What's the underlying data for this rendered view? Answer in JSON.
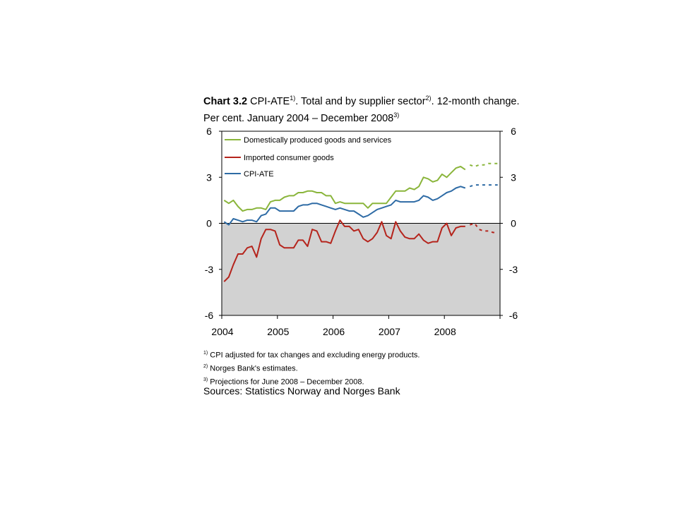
{
  "title": {
    "label": "Chart 3.2",
    "text1": "CPI-ATE",
    "sup1": "1)",
    "text2": ". Total and by supplier sector",
    "sup2": "2)",
    "text3": ". 12-month change. Per cent. January 2004 – December 2008",
    "sup3": "3)"
  },
  "footnotes": [
    {
      "marker": "1)",
      "text": "CPI adjusted for tax changes and excluding energy products."
    },
    {
      "marker": "2)",
      "text": "Norges Bank's estimates."
    },
    {
      "marker": "3)",
      "text": "Projections for June 2008 – December 2008."
    }
  ],
  "sources": "Sources: Statistics Norway and Norges Bank",
  "chart_data": {
    "type": "line",
    "x_start": "2004-01",
    "x_end": "2008-12",
    "x_ticks": [
      "2004",
      "2005",
      "2006",
      "2007",
      "2008"
    ],
    "ylim": [
      -6,
      6
    ],
    "y_ticks": [
      "6",
      "3",
      "0",
      "-3",
      "-6"
    ],
    "y2_ticks": [
      "6",
      "3",
      "0",
      "-3",
      "-6"
    ],
    "shade_below": 0,
    "legend_position": "top-left",
    "colors": {
      "domestic": "#8ab53b",
      "imported": "#b5241c",
      "cpiate": "#2e6ba5",
      "shade": "#d2d2d2"
    },
    "series": [
      {
        "key": "domestic",
        "name": "Domestically produced goods and services",
        "values": [
          1.5,
          1.3,
          1.5,
          1.1,
          0.8,
          0.9,
          0.9,
          1.0,
          1.0,
          0.9,
          1.4,
          1.5,
          1.5,
          1.7,
          1.8,
          1.8,
          2.0,
          2.0,
          2.1,
          2.1,
          2.0,
          2.0,
          1.8,
          1.8,
          1.3,
          1.4,
          1.3,
          1.3,
          1.3,
          1.3,
          1.3,
          1.0,
          1.3,
          1.3,
          1.3,
          1.3,
          1.7,
          2.1,
          2.1,
          2.1,
          2.3,
          2.2,
          2.4,
          3.0,
          2.9,
          2.7,
          2.8,
          3.2,
          3.0,
          3.3,
          3.6,
          3.7,
          3.5
        ],
        "projection": [
          3.8,
          3.7,
          3.8,
          3.8,
          3.9,
          3.9,
          3.9
        ]
      },
      {
        "key": "imported",
        "name": "Imported consumer goods",
        "values": [
          -3.8,
          -3.5,
          -2.7,
          -2.0,
          -2.0,
          -1.6,
          -1.5,
          -2.2,
          -1.0,
          -0.4,
          -0.4,
          -0.5,
          -1.4,
          -1.6,
          -1.6,
          -1.6,
          -1.1,
          -1.1,
          -1.5,
          -0.4,
          -0.5,
          -1.2,
          -1.2,
          -1.3,
          -0.5,
          0.2,
          -0.2,
          -0.2,
          -0.5,
          -0.4,
          -1.0,
          -1.2,
          -1.0,
          -0.6,
          0.1,
          -0.8,
          -1.0,
          0.1,
          -0.5,
          -0.9,
          -1.0,
          -1.0,
          -0.7,
          -1.1,
          -1.3,
          -1.2,
          -1.2,
          -0.3,
          0.0,
          -0.8,
          -0.3,
          -0.2,
          -0.2
        ],
        "projection": [
          -0.1,
          0.0,
          -0.4,
          -0.5,
          -0.5,
          -0.6,
          -0.6
        ]
      },
      {
        "key": "cpiate",
        "name": "CPI-ATE",
        "values": [
          0.1,
          -0.1,
          0.3,
          0.2,
          0.1,
          0.2,
          0.2,
          0.1,
          0.5,
          0.6,
          1.0,
          1.0,
          0.8,
          0.8,
          0.8,
          0.8,
          1.1,
          1.2,
          1.2,
          1.3,
          1.3,
          1.2,
          1.1,
          1.0,
          0.9,
          1.0,
          0.9,
          0.8,
          0.8,
          0.6,
          0.4,
          0.5,
          0.7,
          0.9,
          1.0,
          1.1,
          1.2,
          1.5,
          1.4,
          1.4,
          1.4,
          1.4,
          1.5,
          1.8,
          1.7,
          1.5,
          1.6,
          1.8,
          2.0,
          2.1,
          2.3,
          2.4,
          2.3
        ],
        "projection": [
          2.4,
          2.5,
          2.5,
          2.5,
          2.5,
          2.5,
          2.5
        ]
      }
    ]
  }
}
